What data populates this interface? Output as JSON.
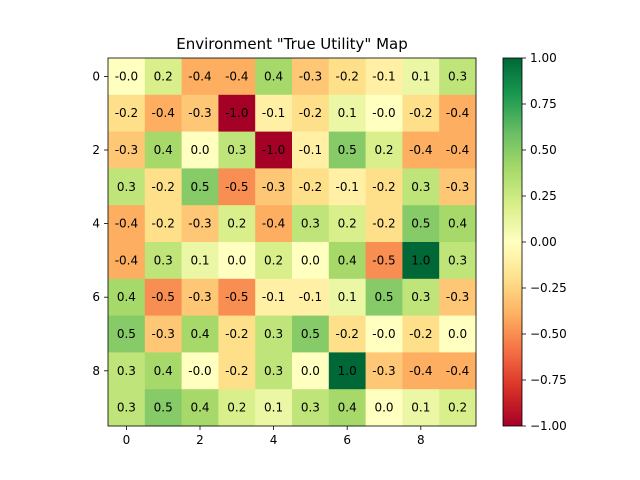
{
  "chart_data": {
    "type": "heatmap",
    "title": "Environment \"True Utility\" Map",
    "colormap": "RdYlGn",
    "vmin": -1.0,
    "vmax": 1.0,
    "xlim": [
      -0.5,
      9.5
    ],
    "ylim": [
      9.5,
      -0.5
    ],
    "x_ticks": [
      0,
      2,
      4,
      6,
      8
    ],
    "y_ticks": [
      0,
      2,
      4,
      6,
      8
    ],
    "colorbar_ticks": [
      "1.00",
      "0.75",
      "0.50",
      "0.25",
      "0.00",
      "−0.25",
      "−0.50",
      "−0.75",
      "−1.00"
    ],
    "colorbar_tick_values": [
      1.0,
      0.75,
      0.5,
      0.25,
      0.0,
      -0.25,
      -0.5,
      -0.75,
      -1.0
    ],
    "grid": false,
    "values": [
      [
        -0.0,
        0.2,
        -0.4,
        -0.4,
        0.4,
        -0.3,
        -0.2,
        -0.1,
        0.1,
        0.3
      ],
      [
        -0.2,
        -0.4,
        -0.3,
        -1.0,
        -0.1,
        -0.2,
        0.1,
        -0.0,
        -0.2,
        -0.4
      ],
      [
        -0.3,
        0.4,
        0.0,
        0.3,
        -1.0,
        -0.1,
        0.5,
        0.2,
        -0.4,
        -0.4
      ],
      [
        0.3,
        -0.2,
        0.5,
        -0.5,
        -0.3,
        -0.2,
        -0.1,
        -0.2,
        0.3,
        -0.3
      ],
      [
        -0.4,
        -0.2,
        -0.3,
        0.2,
        -0.4,
        0.3,
        0.2,
        -0.2,
        0.5,
        0.4
      ],
      [
        -0.4,
        0.3,
        0.1,
        0.0,
        0.2,
        0.0,
        0.4,
        -0.5,
        1.0,
        0.3
      ],
      [
        0.4,
        -0.5,
        -0.3,
        -0.5,
        -0.1,
        -0.1,
        0.1,
        0.5,
        0.3,
        -0.3
      ],
      [
        0.5,
        -0.3,
        0.4,
        -0.2,
        0.3,
        0.5,
        -0.2,
        -0.0,
        -0.2,
        0.0
      ],
      [
        0.3,
        0.4,
        -0.0,
        -0.2,
        0.3,
        0.0,
        1.0,
        -0.3,
        -0.4,
        -0.4
      ],
      [
        0.3,
        0.5,
        0.4,
        0.2,
        0.1,
        0.3,
        0.4,
        0.0,
        0.1,
        0.2
      ]
    ],
    "labels": [
      [
        "-0.0",
        "0.2",
        "-0.4",
        "-0.4",
        "0.4",
        "-0.3",
        "-0.2",
        "-0.1",
        "0.1",
        "0.3"
      ],
      [
        "-0.2",
        "-0.4",
        "-0.3",
        "-1.0",
        "-0.1",
        "-0.2",
        "0.1",
        "-0.0",
        "-0.2",
        "-0.4"
      ],
      [
        "-0.3",
        "0.4",
        "0.0",
        "0.3",
        "-1.0",
        "-0.1",
        "0.5",
        "0.2",
        "-0.4",
        "-0.4"
      ],
      [
        "0.3",
        "-0.2",
        "0.5",
        "-0.5",
        "-0.3",
        "-0.2",
        "-0.1",
        "-0.2",
        "0.3",
        "-0.3"
      ],
      [
        "-0.4",
        "-0.2",
        "-0.3",
        "0.2",
        "-0.4",
        "0.3",
        "0.2",
        "-0.2",
        "0.5",
        "0.4"
      ],
      [
        "-0.4",
        "0.3",
        "0.1",
        "0.0",
        "0.2",
        "0.0",
        "0.4",
        "-0.5",
        "1.0",
        "0.3"
      ],
      [
        "0.4",
        "-0.5",
        "-0.3",
        "-0.5",
        "-0.1",
        "-0.1",
        "0.1",
        "0.5",
        "0.3",
        "-0.3"
      ],
      [
        "0.5",
        "-0.3",
        "0.4",
        "-0.2",
        "0.3",
        "0.5",
        "-0.2",
        "-0.0",
        "-0.2",
        "0.0"
      ],
      [
        "0.3",
        "0.4",
        "-0.0",
        "-0.2",
        "0.3",
        "0.0",
        "1.0",
        "-0.3",
        "-0.4",
        "-0.4"
      ],
      [
        "0.3",
        "0.5",
        "0.4",
        "0.2",
        "0.1",
        "0.3",
        "0.4",
        "0.0",
        "0.1",
        "0.2"
      ]
    ]
  }
}
